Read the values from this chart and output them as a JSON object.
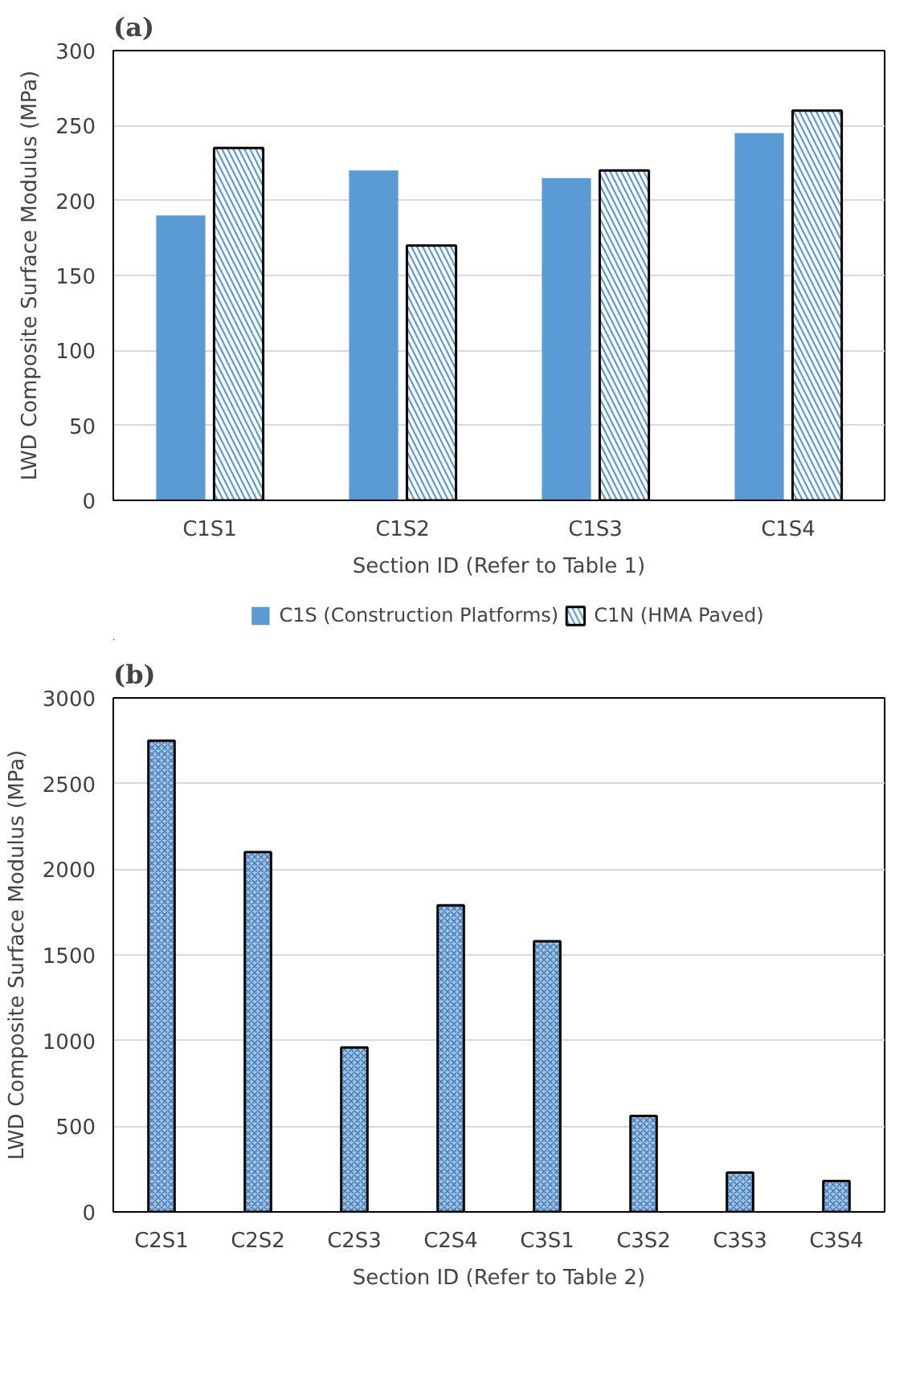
{
  "chart_data": [
    {
      "type": "bar",
      "title": "(a)",
      "xlabel": "Section ID (Refer to Table 1)",
      "ylabel": "LWD Composite Surface Modulus (MPa)",
      "categories": [
        "C1S1",
        "C1S2",
        "C1S3",
        "C1S4"
      ],
      "ylim": [
        0,
        300
      ],
      "yticks": [
        0,
        50,
        100,
        150,
        200,
        250,
        300
      ],
      "grid": "y",
      "legend": "bottom",
      "series": [
        {
          "name": "C1S (Construction Platforms)",
          "color": "#5b9bd5",
          "values": [
            190,
            220,
            215,
            245
          ]
        },
        {
          "name": "C1N (HMA Paved)",
          "color": "#5b9bd5",
          "values": [
            235,
            170,
            220,
            260
          ]
        }
      ]
    },
    {
      "type": "bar",
      "title": "(b)",
      "xlabel": "Section ID (Refer to Table 2)",
      "ylabel": "LWD Composite Surface Modulus (MPa)",
      "categories": [
        "C2S1",
        "C2S2",
        "C2S3",
        "C2S4",
        "C3S1",
        "C3S2",
        "C3S3",
        "C3S4"
      ],
      "ylim": [
        0,
        3000
      ],
      "yticks": [
        0,
        500,
        1000,
        1500,
        2000,
        2500,
        3000
      ],
      "grid": "y",
      "series": [
        {
          "color": "#9dc3e6",
          "values": [
            2750,
            2100,
            960,
            1790,
            1580,
            560,
            230,
            180
          ]
        }
      ]
    }
  ]
}
